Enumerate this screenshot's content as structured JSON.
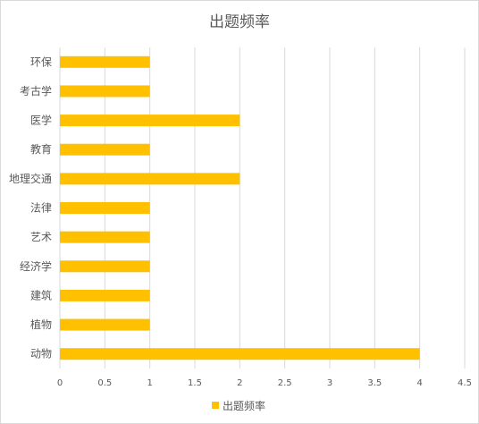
{
  "chart_data": {
    "type": "bar",
    "orientation": "horizontal",
    "title": "出题频率",
    "categories": [
      "环保",
      "考古学",
      "医学",
      "教育",
      "地理交通",
      "法律",
      "艺术",
      "经济学",
      "建筑",
      "植物",
      "动物"
    ],
    "series": [
      {
        "name": "出题频率",
        "values": [
          1,
          1,
          2,
          1,
          2,
          1,
          1,
          1,
          1,
          1,
          4
        ],
        "color": "#FFC000"
      }
    ],
    "xlim": [
      0,
      4.5
    ],
    "x_ticks": [
      "0",
      "0.5",
      "1",
      "1.5",
      "2",
      "2.5",
      "3",
      "3.5",
      "4",
      "4.5"
    ],
    "grid": "vertical",
    "legend_position": "bottom",
    "xlabel": "",
    "ylabel": ""
  },
  "colors": {
    "bar": "#FFC000",
    "grid": "#d9d9d9",
    "text": "#595959"
  }
}
